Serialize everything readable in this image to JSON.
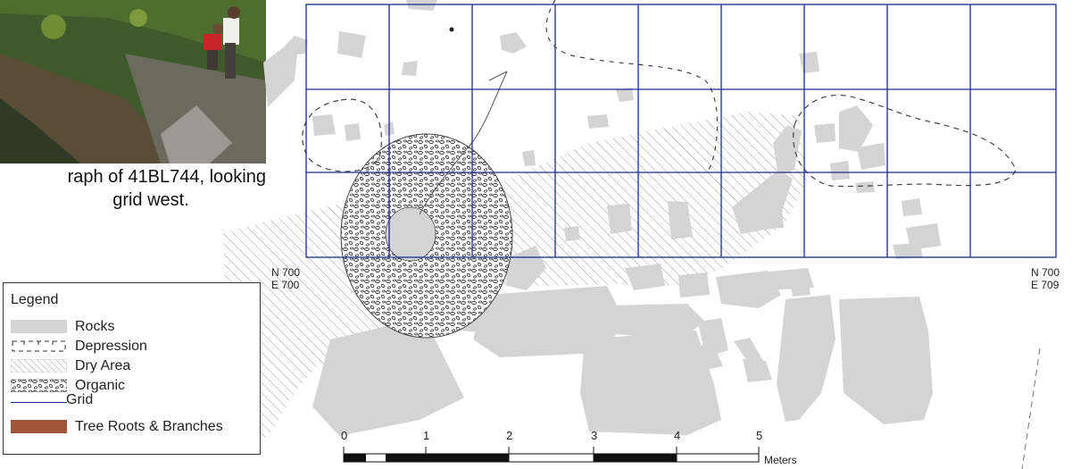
{
  "photo": {
    "caption_line1": "raph of 41BL744, looking",
    "caption_line2": "grid west."
  },
  "map": {
    "corner_sw": {
      "n": "N 700",
      "e": "E 700"
    },
    "corner_se": {
      "n": "N 700",
      "e": "E 709"
    },
    "grid_color": "#1a2e8c",
    "rock_color": "#d4d4d4"
  },
  "legend": {
    "title": "Legend",
    "items": [
      {
        "key": "rocks",
        "label": "Rocks",
        "color": "#d4d4d4"
      },
      {
        "key": "depression",
        "label": "Depression"
      },
      {
        "key": "dry",
        "label": "Dry Area"
      },
      {
        "key": "organic",
        "label": "Organic"
      },
      {
        "key": "grid",
        "label": "Grid",
        "color": "#1a2e8c"
      },
      {
        "key": "roots",
        "label": "Tree Roots & Branches",
        "color": "#a0553a"
      }
    ]
  },
  "scale": {
    "ticks": [
      "0",
      "1",
      "2",
      "3",
      "4",
      "5"
    ],
    "unit": "Meters"
  }
}
